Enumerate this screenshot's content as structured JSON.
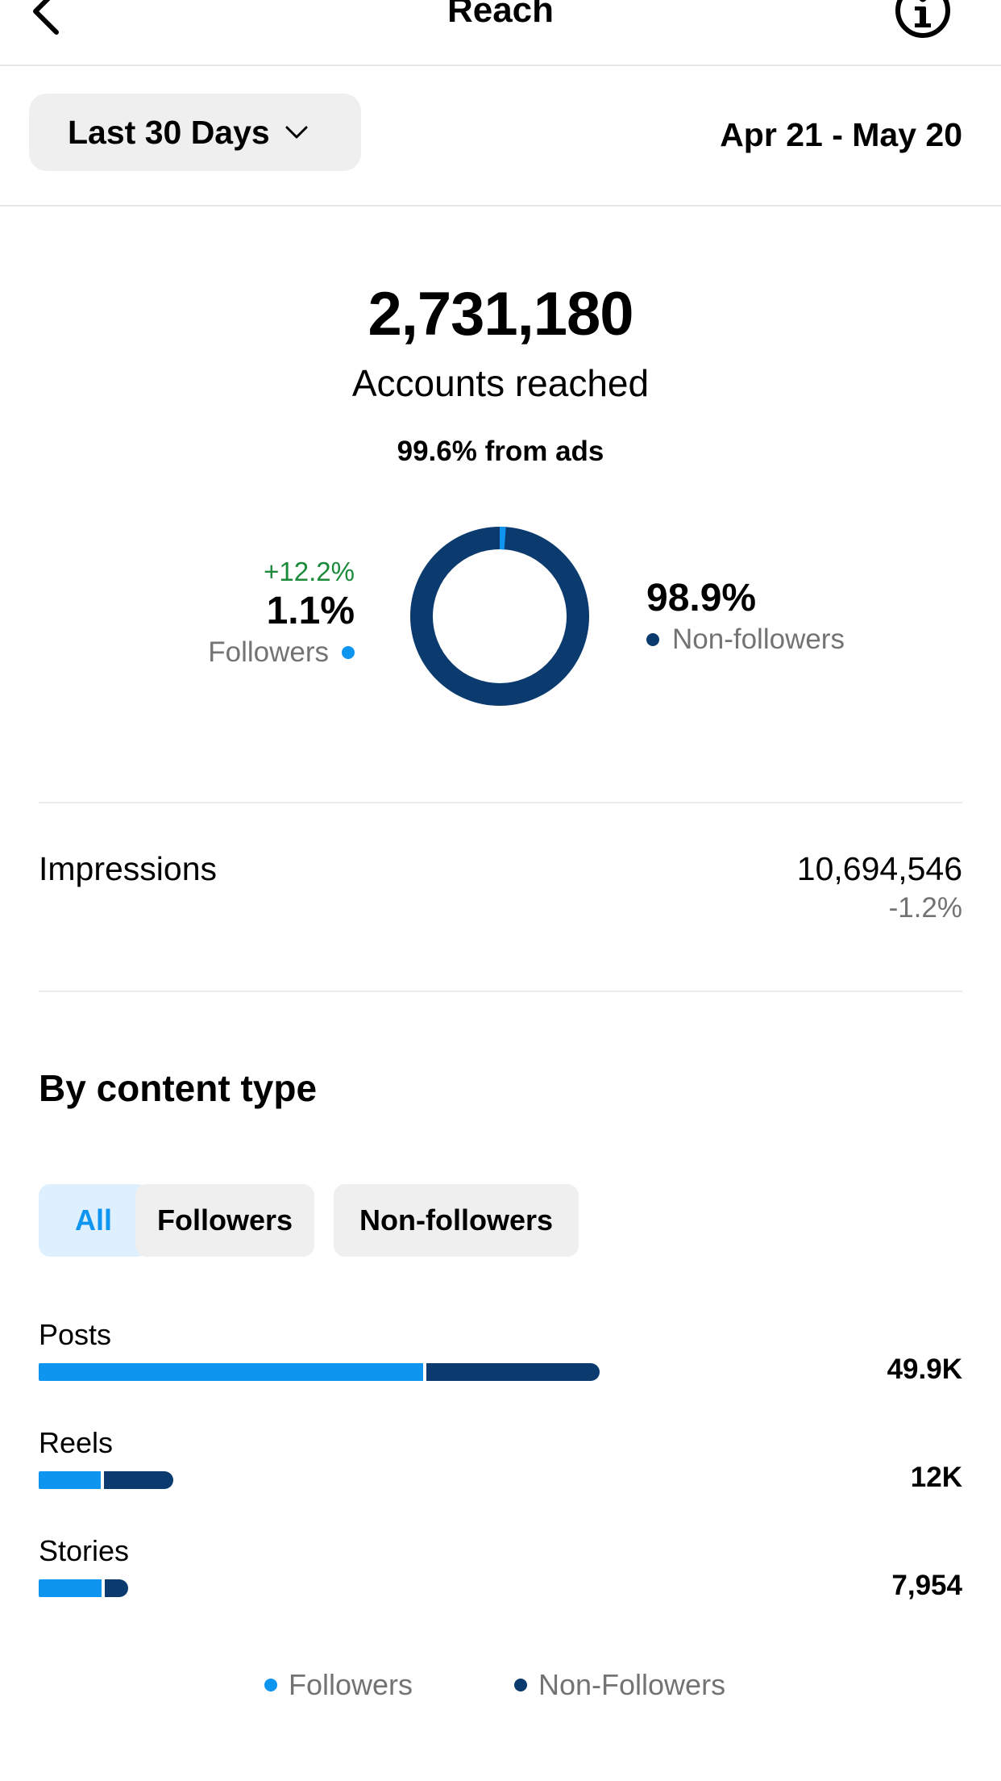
{
  "header": {
    "title": "Reach",
    "back_icon": "chevron-left-icon",
    "info_icon": "info-icon"
  },
  "filter": {
    "period_label": "Last 30 Days",
    "date_range": "Apr 21 - May 20"
  },
  "summary": {
    "accounts_reached": "2,731,180",
    "accounts_label": "Accounts reached",
    "ads_note": "99.6% from ads"
  },
  "audience": {
    "followers": {
      "change": "+12.2%",
      "percent": "1.1%",
      "label": "Followers",
      "share": 1.1
    },
    "non_followers": {
      "percent": "98.9%",
      "label": "Non-followers",
      "share": 98.9
    }
  },
  "impressions": {
    "label": "Impressions",
    "value": "10,694,546",
    "change": "-1.2%"
  },
  "content_type": {
    "title": "By content type",
    "filters": [
      "All",
      "Followers",
      "Non-followers"
    ],
    "active_filter": "All",
    "rows": [
      {
        "label": "Posts",
        "value": "49.9K",
        "total": 49900,
        "followers_fraction": 0.69
      },
      {
        "label": "Reels",
        "value": "12K",
        "total": 12000,
        "followers_fraction": 0.47
      },
      {
        "label": "Stories",
        "value": "7,954",
        "total": 7954,
        "followers_fraction": 0.73
      }
    ],
    "legend": [
      "Followers",
      "Non-Followers"
    ]
  },
  "colors": {
    "followers": "#0d95f0",
    "non_followers": "#0b3a6e",
    "positive_change": "#1b8a3a"
  }
}
